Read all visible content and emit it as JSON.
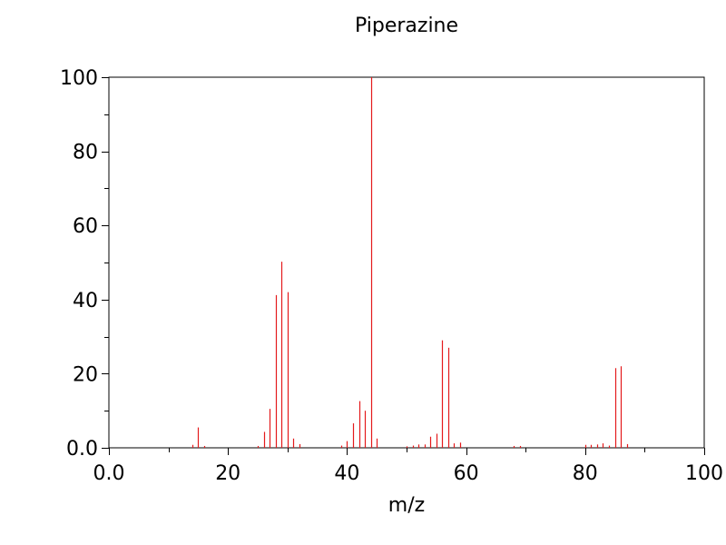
{
  "chart_data": {
    "type": "bar",
    "title": "Piperazine",
    "xlabel": "m/z",
    "ylabel": "",
    "xlim": [
      0,
      100
    ],
    "ylim": [
      0,
      100
    ],
    "x_ticks": [
      "0.0",
      "20",
      "40",
      "60",
      "80",
      "100"
    ],
    "y_ticks": [
      "0.0",
      "20",
      "40",
      "60",
      "80",
      "100"
    ],
    "grid": false,
    "legend": "none",
    "colors": {
      "peak": "#e41a1c",
      "axis": "#000000"
    },
    "peaks": [
      {
        "mz": 14,
        "intensity": 0.8
      },
      {
        "mz": 15,
        "intensity": 5.5
      },
      {
        "mz": 16,
        "intensity": 0.5
      },
      {
        "mz": 25,
        "intensity": 0.5
      },
      {
        "mz": 26,
        "intensity": 4.3
      },
      {
        "mz": 27,
        "intensity": 10.5
      },
      {
        "mz": 28,
        "intensity": 41.2
      },
      {
        "mz": 29,
        "intensity": 50.2
      },
      {
        "mz": 30,
        "intensity": 42.0
      },
      {
        "mz": 31,
        "intensity": 2.5
      },
      {
        "mz": 32,
        "intensity": 1.0
      },
      {
        "mz": 39,
        "intensity": 0.6
      },
      {
        "mz": 40,
        "intensity": 1.8
      },
      {
        "mz": 41,
        "intensity": 6.6
      },
      {
        "mz": 42,
        "intensity": 12.6
      },
      {
        "mz": 43,
        "intensity": 10.0
      },
      {
        "mz": 44,
        "intensity": 100
      },
      {
        "mz": 45,
        "intensity": 2.5
      },
      {
        "mz": 50,
        "intensity": 0.4
      },
      {
        "mz": 51,
        "intensity": 0.6
      },
      {
        "mz": 52,
        "intensity": 0.9
      },
      {
        "mz": 53,
        "intensity": 0.9
      },
      {
        "mz": 54,
        "intensity": 3.0
      },
      {
        "mz": 55,
        "intensity": 3.8
      },
      {
        "mz": 56,
        "intensity": 29.0
      },
      {
        "mz": 57,
        "intensity": 27.0
      },
      {
        "mz": 58,
        "intensity": 1.2
      },
      {
        "mz": 59,
        "intensity": 1.4
      },
      {
        "mz": 68,
        "intensity": 0.5
      },
      {
        "mz": 69,
        "intensity": 0.5
      },
      {
        "mz": 80,
        "intensity": 0.8
      },
      {
        "mz": 81,
        "intensity": 0.8
      },
      {
        "mz": 82,
        "intensity": 0.9
      },
      {
        "mz": 83,
        "intensity": 1.2
      },
      {
        "mz": 84,
        "intensity": 0.6
      },
      {
        "mz": 85,
        "intensity": 21.5
      },
      {
        "mz": 86,
        "intensity": 22.0
      },
      {
        "mz": 87,
        "intensity": 1.0
      }
    ]
  }
}
